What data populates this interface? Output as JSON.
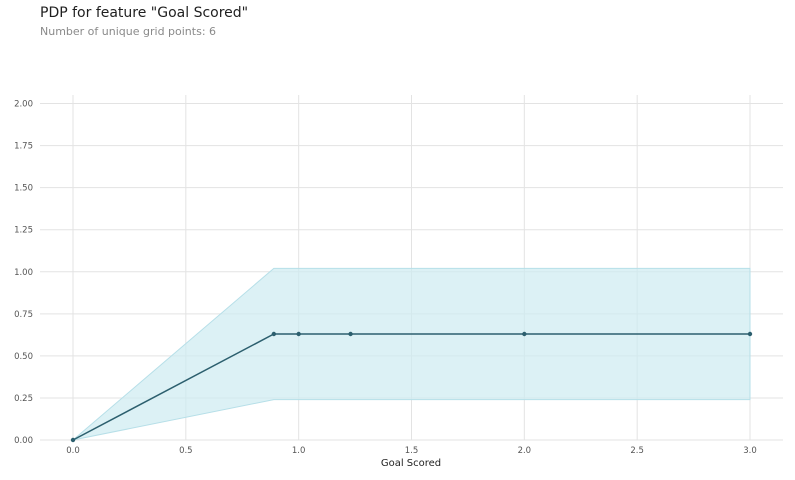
{
  "header": {
    "title": "PDP for feature \"Goal Scored\"",
    "subtitle": "Number of unique grid points: 6"
  },
  "colors": {
    "line": "#2c5f6e",
    "band": "#cdebf1",
    "band_edge": "#b6dfe8",
    "grid": "#e3e3e3"
  },
  "chart_data": {
    "type": "line",
    "title": "PDP for feature \"Goal Scored\"",
    "subtitle": "Number of unique grid points: 6",
    "xlabel": "Goal Scored",
    "ylabel": "",
    "xlim": [
      -0.15,
      3.15
    ],
    "ylim": [
      0,
      2.0
    ],
    "xticks": [
      "0.0",
      "0.5",
      "1.0",
      "1.5",
      "2.0",
      "2.5",
      "3.0"
    ],
    "xtick_values": [
      0,
      0.5,
      1.0,
      1.5,
      2.0,
      2.5,
      3.0
    ],
    "yticks": [
      "0.00",
      "0.25",
      "0.50",
      "0.75",
      "1.00",
      "1.25",
      "1.50",
      "1.75",
      "2.00"
    ],
    "ytick_values": [
      0,
      0.25,
      0.5,
      0.75,
      1.0,
      1.25,
      1.5,
      1.75,
      2.0
    ],
    "grid": true,
    "series": [
      {
        "x": [
          0,
          0.89,
          1.0,
          1.23,
          2.0,
          3.0
        ],
        "y": [
          0,
          0.63,
          0.63,
          0.63,
          0.63,
          0.63
        ],
        "upper": [
          0,
          1.02,
          1.02,
          1.02,
          1.02,
          1.02
        ],
        "lower": [
          0,
          0.24,
          0.24,
          0.24,
          0.24,
          0.24
        ]
      }
    ]
  }
}
